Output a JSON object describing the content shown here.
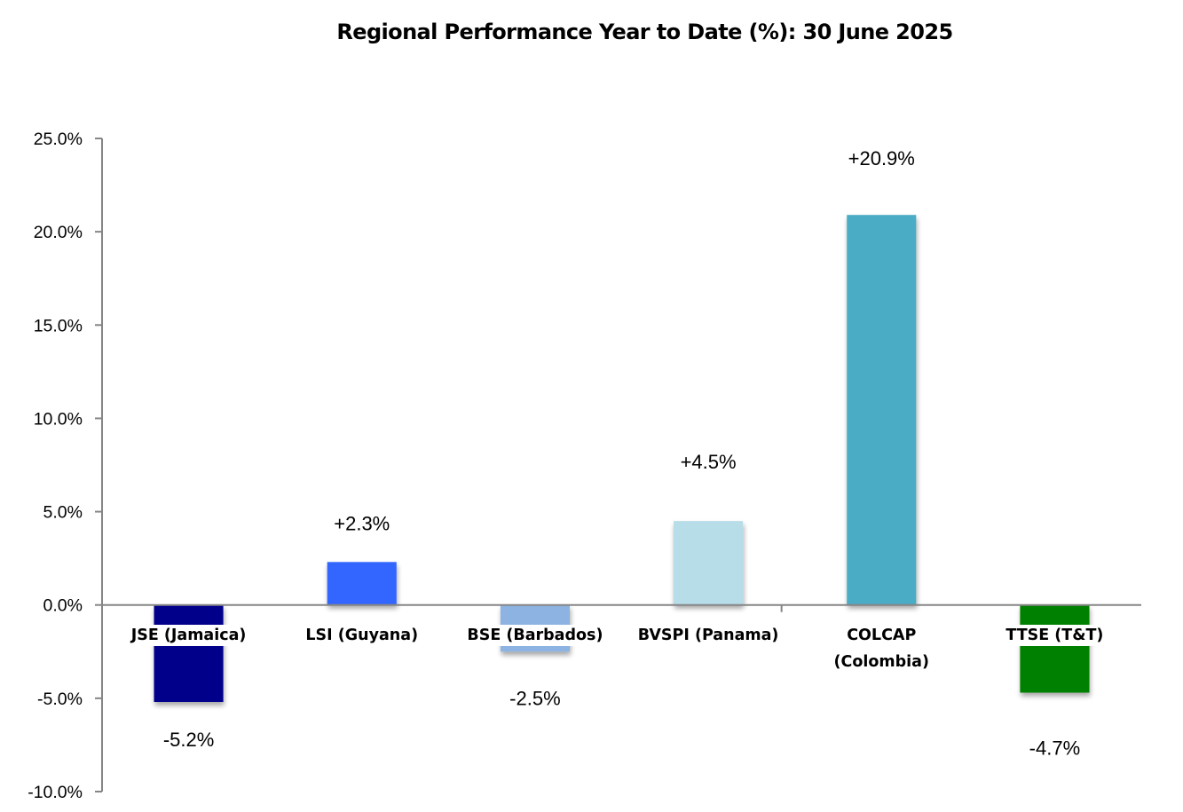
{
  "chart_data": {
    "type": "bar",
    "title": "Regional Performance Year to Date (%): 30 June 2025",
    "xlabel": "",
    "ylabel": "",
    "ylim": [
      -10,
      25
    ],
    "yticks": [
      25,
      20,
      15,
      10,
      5,
      0,
      -5,
      -10
    ],
    "ytick_labels": [
      "25.0%",
      "20.0%",
      "15.0%",
      "10.0%",
      "5.0%",
      "0.0%",
      "-5.0%",
      "-10.0%"
    ],
    "grid": false,
    "legend": "none",
    "categories": [
      [
        "JSE (Jamaica)"
      ],
      [
        "LSI (Guyana)"
      ],
      [
        "BSE (Barbados)"
      ],
      [
        "BVSPI (Panama)"
      ],
      [
        "COLCAP",
        "(Colombia)"
      ],
      [
        "TTSE (T&T)"
      ]
    ],
    "values": [
      -5.2,
      2.3,
      -2.5,
      4.5,
      20.9,
      -4.7
    ],
    "data_labels": [
      "-5.2%",
      "+2.3%",
      "-2.5%",
      "+4.5%",
      "+20.9%",
      "-4.7%"
    ],
    "colors": [
      "#00008B",
      "#3366FF",
      "#8DB3E2",
      "#B7DDE8",
      "#4BACC6",
      "#008000"
    ]
  }
}
